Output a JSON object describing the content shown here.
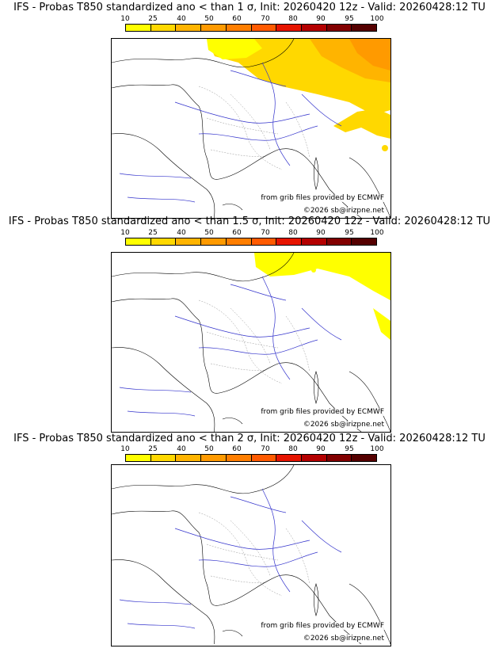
{
  "scale": {
    "labels": [
      "10",
      "25",
      "40",
      "50",
      "60",
      "70",
      "80",
      "90",
      "95",
      "100"
    ],
    "colors": [
      "#ffff00",
      "#ffd800",
      "#ffb400",
      "#ff9a00",
      "#ff7e00",
      "#ff5a00",
      "#e61400",
      "#b40000",
      "#820000",
      "#550000"
    ]
  },
  "panels": [
    {
      "title": "IFS - Probas T850  standardized ano < than 1 σ, Init: 20260420 12z - Valid: 20260428:12 TU",
      "source_credit": "from grib files provided by ECMWF",
      "copyright": "©2026 sb@irizpne.net"
    },
    {
      "title": "IFS - Probas T850  standardized ano < than 1.5 σ, Init: 20260420 12z - Valid: 20260428:12 TU",
      "source_credit": "from grib files provided by ECMWF",
      "copyright": "©2026 sb@irizpne.net"
    },
    {
      "title": "IFS - Probas T850  standardized ano < than 2 σ, Init: 20260420 12z - Valid: 20260428:12 TU",
      "source_credit": "from grib files provided by ECMWF",
      "copyright": "©2026 sb@irizpne.net"
    }
  ]
}
